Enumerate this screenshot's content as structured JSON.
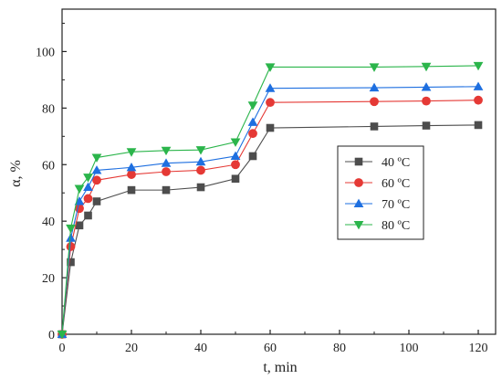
{
  "chart_data": {
    "type": "line",
    "xlabel": "t, min",
    "ylabel": "α, %",
    "xlim": [
      0,
      125
    ],
    "ylim": [
      0,
      115
    ],
    "xticks": [
      0,
      20,
      40,
      60,
      80,
      100,
      120
    ],
    "yticks": [
      0,
      20,
      40,
      60,
      80,
      100
    ],
    "x": [
      0,
      2.5,
      5,
      7.5,
      10,
      20,
      30,
      40,
      50,
      55,
      60,
      90,
      105,
      120
    ],
    "grid": false,
    "legend_position": "center-right",
    "series": [
      {
        "name": "40 ºC",
        "marker": "square",
        "color": "#4d4d4d",
        "values": [
          0,
          25.5,
          38.5,
          42,
          47,
          51,
          51,
          52,
          55,
          63,
          73,
          73.5,
          73.8,
          74
        ]
      },
      {
        "name": "60 ºC",
        "marker": "circle",
        "color": "#e53935",
        "values": [
          0,
          31,
          44.5,
          48,
          54.5,
          56.5,
          57.5,
          58,
          60,
          71,
          82,
          82.3,
          82.5,
          82.8
        ]
      },
      {
        "name": "70 ºC",
        "marker": "triangle-up",
        "color": "#1e6fe0",
        "values": [
          0,
          34,
          47,
          52,
          58,
          59,
          60.5,
          61,
          63,
          75,
          87,
          87.2,
          87.4,
          87.6
        ]
      },
      {
        "name": "80 ºC",
        "marker": "triangle-down",
        "color": "#2bb54b",
        "values": [
          0,
          37.5,
          51.5,
          55.5,
          62.5,
          64.5,
          65,
          65.2,
          68,
          81,
          94.5,
          94.5,
          94.7,
          95
        ]
      }
    ]
  }
}
